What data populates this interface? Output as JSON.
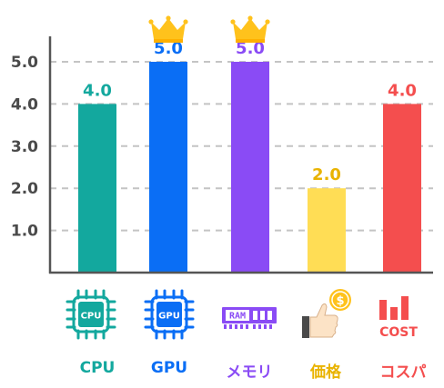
{
  "chart_data": {
    "type": "bar",
    "categories": [
      "CPU",
      "GPU",
      "メモリ",
      "価格",
      "コスパ"
    ],
    "values": [
      4.0,
      5.0,
      5.0,
      2.0,
      4.0
    ],
    "value_labels": [
      "4.0",
      "5.0",
      "5.0",
      "2.0",
      "4.0"
    ],
    "yticks": [
      "1.0",
      "2.0",
      "3.0",
      "4.0",
      "5.0"
    ],
    "ylim": [
      0,
      5.5
    ],
    "grid": true,
    "colors": [
      "#13a89e",
      "#0a6ef5",
      "#8a4bf5",
      "#ffdd55",
      "#f44e4e"
    ],
    "label_colors": [
      "#13a89e",
      "#0a6ef5",
      "#8a4bf5",
      "#e9b300",
      "#f44e4e"
    ],
    "highlight": [
      "GPU",
      "メモリ"
    ],
    "highlight_icon": "crown-icon",
    "icons": [
      "cpu-chip-icon",
      "gpu-chip-icon",
      "ram-module-icon",
      "thumbs-up-coin-icon",
      "cost-bars-icon"
    ],
    "icon_text": {
      "cpu": "CPU",
      "gpu": "GPU",
      "ram": "RAM",
      "coin": "$",
      "cost": "COST"
    }
  }
}
